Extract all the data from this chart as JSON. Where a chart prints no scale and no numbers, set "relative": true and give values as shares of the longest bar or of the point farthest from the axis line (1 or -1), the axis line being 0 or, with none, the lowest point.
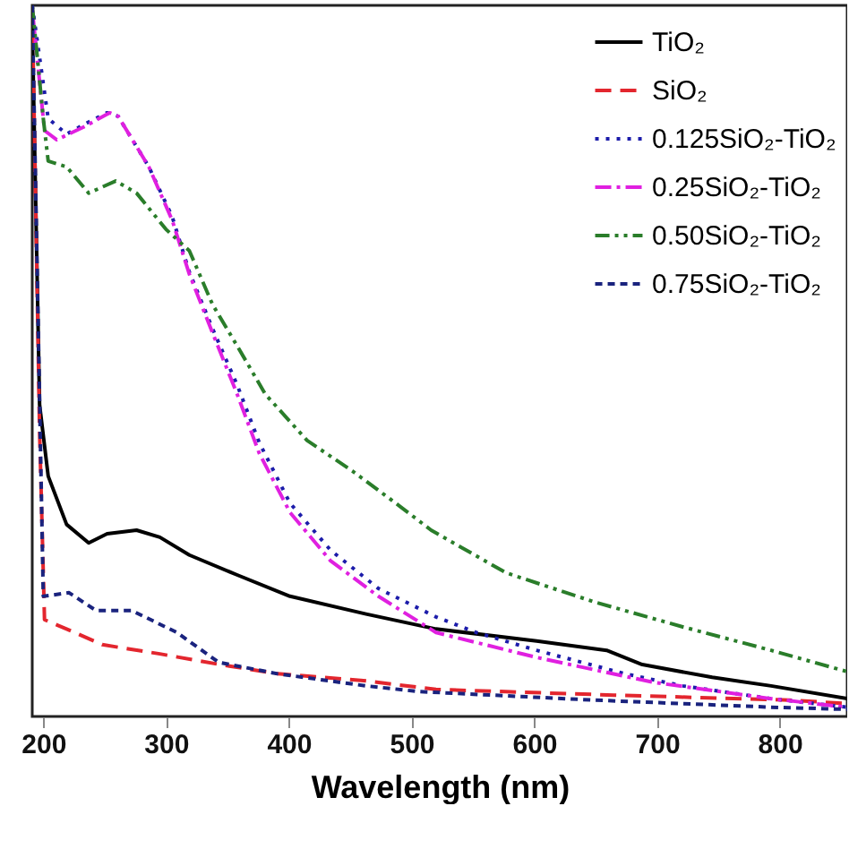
{
  "chart_data": {
    "type": "line",
    "xlabel": "Wavelength (nm)",
    "relative": true,
    "xlim": [
      191,
      855
    ],
    "xticks": [
      200,
      300,
      400,
      500,
      600,
      700,
      800
    ],
    "grid": false,
    "legend": "top right",
    "marker": "none",
    "series": [
      {
        "name": "TiO₂",
        "color": "#000000",
        "line_style": "solid",
        "x": [
          191,
          197,
          204,
          219,
          237,
          252,
          276,
          295,
          319,
          358,
          401,
          463,
          520,
          602,
          659,
          688,
          745,
          793,
          855
        ],
        "values": [
          0.975,
          0.438,
          0.338,
          0.27,
          0.244,
          0.257,
          0.262,
          0.252,
          0.227,
          0.199,
          0.169,
          0.144,
          0.123,
          0.106,
          0.093,
          0.073,
          0.055,
          0.043,
          0.025
        ]
      },
      {
        "name": "SiO₂",
        "color": "#e3262e",
        "line_style": "dashed",
        "x": [
          191,
          197,
          201,
          219,
          248,
          295,
          344,
          391,
          463,
          520,
          665,
          808,
          855
        ],
        "values": [
          1.0,
          0.4,
          0.136,
          0.123,
          0.101,
          0.088,
          0.073,
          0.06,
          0.05,
          0.038,
          0.03,
          0.023,
          0.018
        ]
      },
      {
        "name": "0.125SiO₂-TiO₂",
        "color": "#1c1caa",
        "line_style": "dotted",
        "x": [
          191,
          204,
          219,
          237,
          252,
          261,
          286,
          305,
          319,
          338,
          358,
          376,
          401,
          434,
          473,
          520,
          553,
          602,
          674,
          721,
          793,
          855
        ],
        "values": [
          1.0,
          0.841,
          0.819,
          0.836,
          0.849,
          0.844,
          0.773,
          0.703,
          0.625,
          0.545,
          0.466,
          0.385,
          0.3,
          0.234,
          0.18,
          0.14,
          0.118,
          0.093,
          0.06,
          0.043,
          0.025,
          0.013
        ]
      },
      {
        "name": "0.25SiO₂-TiO₂",
        "color": "#e020e0",
        "line_style": "dashdot",
        "x": [
          191,
          201,
          211,
          233,
          254,
          261,
          286,
          305,
          319,
          338,
          358,
          376,
          401,
          434,
          473,
          520,
          602,
          697,
          793,
          855
        ],
        "values": [
          0.995,
          0.824,
          0.811,
          0.829,
          0.849,
          0.844,
          0.773,
          0.698,
          0.622,
          0.539,
          0.453,
          0.37,
          0.287,
          0.219,
          0.169,
          0.118,
          0.083,
          0.048,
          0.025,
          0.013
        ]
      },
      {
        "name": "0.50SiO₂-TiO₂",
        "color": "#2a7d2a",
        "line_style": "dashdotdot",
        "x": [
          191,
          200,
          204,
          219,
          237,
          259,
          276,
          300,
          319,
          338,
          358,
          381,
          415,
          452,
          491,
          516,
          577,
          649,
          721,
          793,
          855
        ],
        "values": [
          1.0,
          0.841,
          0.781,
          0.773,
          0.736,
          0.753,
          0.736,
          0.685,
          0.655,
          0.579,
          0.521,
          0.453,
          0.388,
          0.345,
          0.295,
          0.262,
          0.202,
          0.161,
          0.126,
          0.093,
          0.063
        ]
      },
      {
        "name": "0.75SiO₂-TiO₂",
        "color": "#1a237e",
        "line_style": "shortdash",
        "x": [
          191,
          200,
          221,
          243,
          272,
          309,
          343,
          391,
          463,
          506,
          649,
          793,
          855
        ],
        "values": [
          1.0,
          0.169,
          0.174,
          0.149,
          0.149,
          0.118,
          0.076,
          0.06,
          0.043,
          0.035,
          0.023,
          0.013,
          0.01
        ]
      }
    ]
  }
}
